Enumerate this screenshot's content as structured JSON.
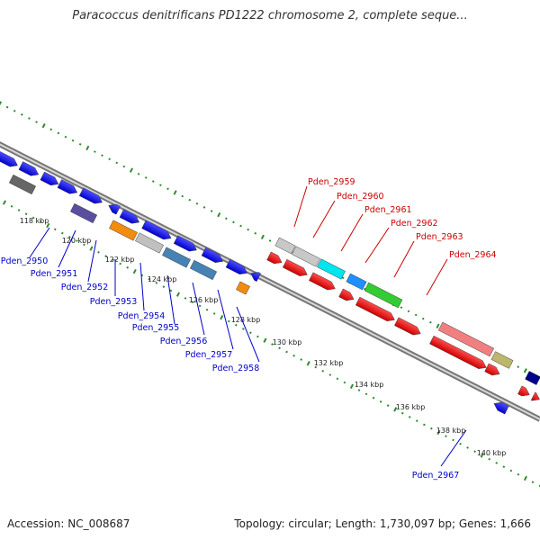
{
  "title": "Paracoccus denitrificans PD1222 chromosome 2, complete seque...",
  "footer": {
    "accession": "Accession: NC_008687",
    "info": "Topology: circular; Length: 1,730,097 bp; Genes: 1,666"
  },
  "ticks": [
    "118 kbp",
    "120 kbp",
    "122 kbp",
    "124 kbp",
    "126 kbp",
    "128 kbp",
    "130 kbp",
    "132 kbp",
    "134 kbp",
    "136 kbp",
    "138 kbp",
    "140 kbp"
  ],
  "labels_forward": [
    "Pden_2959",
    "Pden_2960",
    "Pden_2961",
    "Pden_2962",
    "Pden_2963",
    "Pden_2964"
  ],
  "labels_reverse": [
    "Pden_2950",
    "Pden_2951",
    "Pden_2952",
    "Pden_2953",
    "Pden_2954",
    "Pden_2955",
    "Pden_2956",
    "Pden_2957",
    "Pden_2958",
    "Pden_2967"
  ],
  "colors": {
    "forward_label": "#cc0000",
    "reverse_label": "#0000cc",
    "backbone": "#888888",
    "dots": "#2e8b2e"
  }
}
